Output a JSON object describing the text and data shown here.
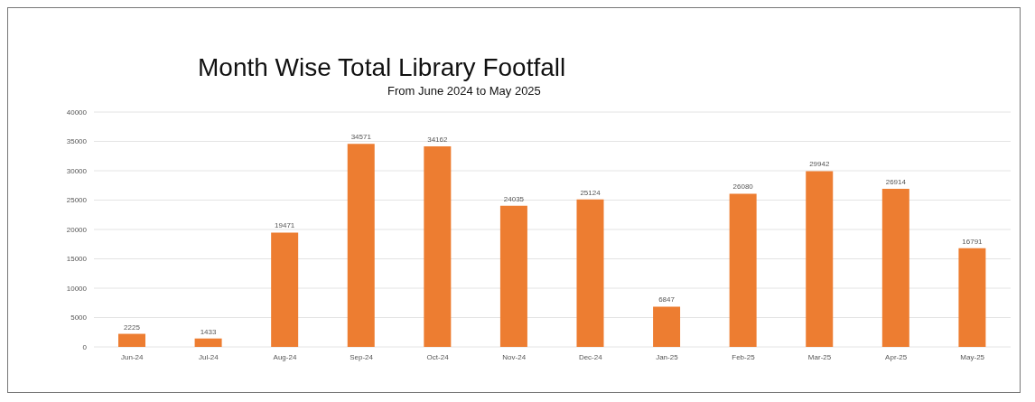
{
  "chart_data": {
    "type": "bar",
    "title": "Month Wise Total Library Footfall",
    "subtitle": "From June 2024 to May 2025",
    "categories": [
      "Jun-24",
      "Jul-24",
      "Aug-24",
      "Sep-24",
      "Oct-24",
      "Nov-24",
      "Dec-24",
      "Jan-25",
      "Feb-25",
      "Mar-25",
      "Apr-25",
      "May-25"
    ],
    "values": [
      2225,
      1433,
      19471,
      34571,
      34162,
      24035,
      25124,
      6847,
      26080,
      29942,
      26914,
      16791
    ],
    "color": "#ed7d31",
    "ylim": [
      0,
      40000
    ],
    "yticks": [
      0,
      5000,
      10000,
      15000,
      20000,
      25000,
      30000,
      35000,
      40000
    ],
    "grid": "y",
    "data_labels": true
  }
}
